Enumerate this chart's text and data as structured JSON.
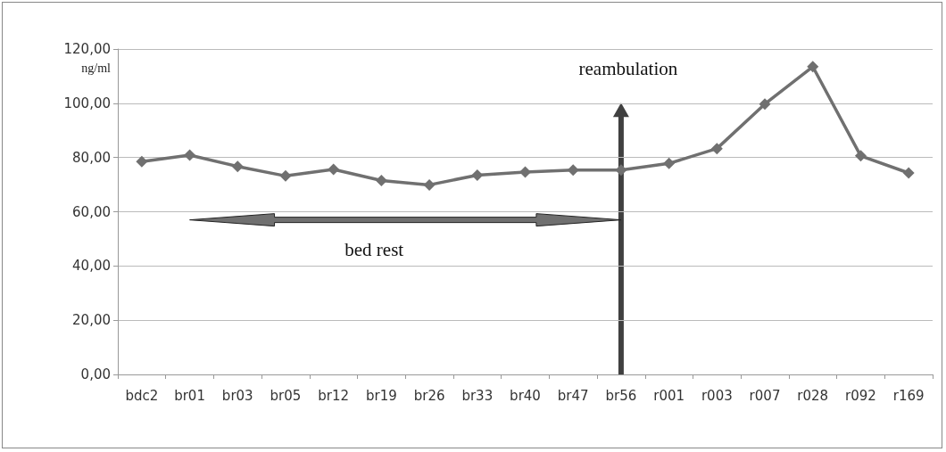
{
  "chart_data": {
    "type": "line",
    "ylabel": "ng/ml",
    "categories": [
      "bdc2",
      "br01",
      "br03",
      "br05",
      "br12",
      "br19",
      "br26",
      "br33",
      "br40",
      "br47",
      "br56",
      "r001",
      "r003",
      "r007",
      "r028",
      "r092",
      "r169"
    ],
    "series": [
      {
        "color": "#707070",
        "values": [
          78.5,
          80.9,
          76.7,
          73.2,
          75.6,
          71.5,
          69.9,
          73.5,
          74.6,
          75.4,
          75.4,
          77.8,
          83.3,
          99.7,
          113.5,
          80.6,
          74.3
        ]
      }
    ],
    "ylim": [
      0,
      120
    ],
    "yticks": [
      {
        "value": 0,
        "label": "0,00"
      },
      {
        "value": 20,
        "label": "20,00"
      },
      {
        "value": 40,
        "label": "40,00"
      },
      {
        "value": 60,
        "label": "60,00"
      },
      {
        "value": 80,
        "label": "80,00"
      },
      {
        "value": 100,
        "label": "100,00"
      },
      {
        "value": 120,
        "label": "120,00"
      }
    ],
    "grid": "y",
    "marker": "diamond",
    "line_style": "solid",
    "ref_lines": [
      {
        "axis": "x",
        "value": "br56",
        "label": "reambulation",
        "color": "#404040"
      }
    ],
    "annotations": [
      "bed rest"
    ]
  }
}
